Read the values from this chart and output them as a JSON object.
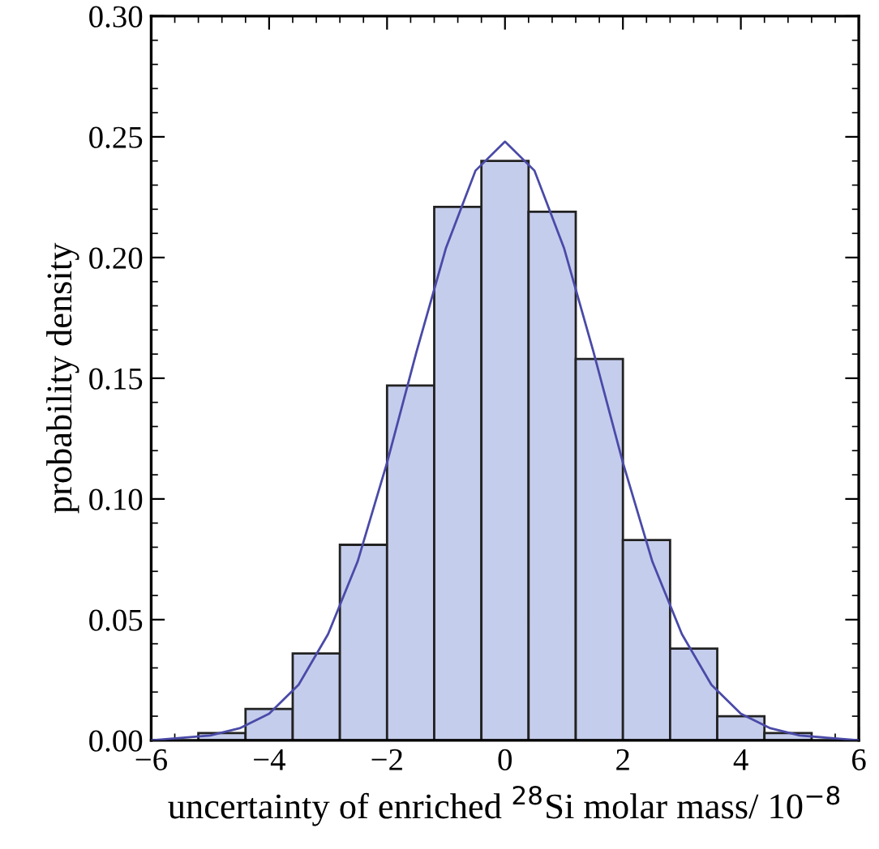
{
  "chart_data": {
    "type": "histogram",
    "xlabel": "uncertainty of enriched $^{28}$Si molar mass/ 10$^{−8}$",
    "ylabel": "probability density",
    "bins": [
      -5.2,
      -4.4,
      -3.6,
      -2.8,
      -2.0,
      -1.2,
      -0.4,
      0.4,
      1.2,
      2.0,
      2.8,
      3.6,
      4.4,
      5.2
    ],
    "values": [
      0.003,
      0.013,
      0.036,
      0.081,
      0.147,
      0.221,
      0.24,
      0.219,
      0.158,
      0.083,
      0.038,
      0.01,
      0.003
    ],
    "color": "#c5cdec",
    "series": [
      {
        "type": "line",
        "color": "#4a4aa8",
        "x": [
          -6,
          -5.5,
          -5,
          -4.5,
          -4,
          -3.5,
          -3,
          -2.5,
          -2,
          -1.5,
          -1,
          -0.5,
          0,
          0.5,
          1,
          1.5,
          2,
          2.5,
          3,
          3.5,
          4,
          4.5,
          5,
          5.5,
          6
        ],
        "values": [
          0.0,
          0.001,
          0.002,
          0.005,
          0.011,
          0.023,
          0.044,
          0.074,
          0.115,
          0.161,
          0.204,
          0.236,
          0.248,
          0.236,
          0.204,
          0.161,
          0.115,
          0.074,
          0.044,
          0.023,
          0.011,
          0.005,
          0.002,
          0.001,
          0.0
        ]
      }
    ],
    "xlim": [
      -6,
      6
    ],
    "ylim": [
      0,
      0.3
    ],
    "xticks": [
      {
        "value": -6,
        "label": "−6"
      },
      {
        "value": -4,
        "label": "−4"
      },
      {
        "value": -2,
        "label": "−2"
      },
      0,
      2,
      4,
      6
    ],
    "yticks": [
      {
        "value": 0,
        "label": "0.00"
      },
      {
        "value": 0.05,
        "label": "0.05"
      },
      {
        "value": 0.1,
        "label": "0.10"
      },
      {
        "value": 0.15,
        "label": "0.15"
      },
      {
        "value": 0.2,
        "label": "0.20"
      },
      {
        "value": 0.25,
        "label": "0.25"
      },
      {
        "value": 0.3,
        "label": "0.30"
      }
    ]
  }
}
